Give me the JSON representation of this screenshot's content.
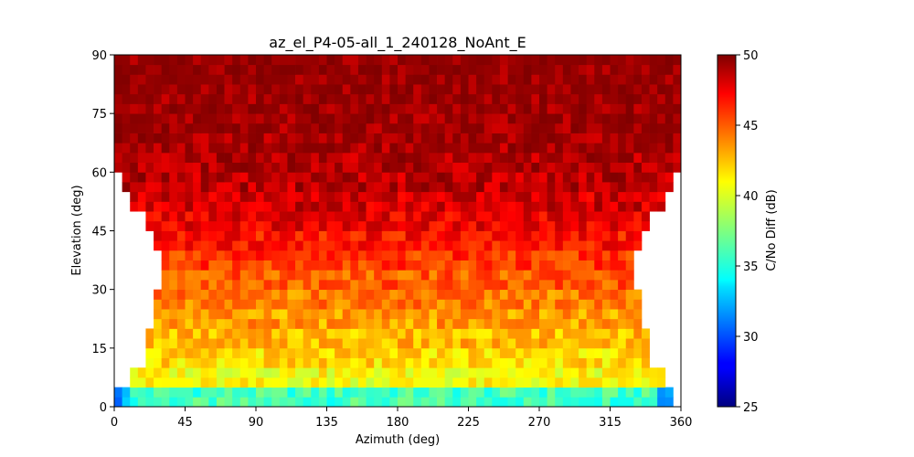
{
  "chart_data": {
    "type": "heatmap",
    "title": "az_el_P4-05-all_1_240128_NoAnt_E",
    "xlabel": "Azimuth (deg)",
    "ylabel": "Elevation (deg)",
    "xlim": [
      0,
      360
    ],
    "ylim": [
      0,
      90
    ],
    "x_ticks": [
      "0",
      "45",
      "90",
      "135",
      "180",
      "225",
      "270",
      "315",
      "360"
    ],
    "y_ticks": [
      "0",
      "15",
      "30",
      "45",
      "60",
      "75",
      "90"
    ],
    "bin_size_deg": [
      5,
      2.5
    ],
    "colorbar": {
      "label": "C/No Diff (dB)",
      "range": [
        25,
        50
      ],
      "ticks": [
        "25",
        "30",
        "35",
        "40",
        "45",
        "50"
      ],
      "colormap": "jet"
    },
    "elevation_bands_mean_db": [
      {
        "el": [
          0,
          5
        ],
        "value": 36
      },
      {
        "el": [
          5,
          10
        ],
        "value": 40.5
      },
      {
        "el": [
          10,
          15
        ],
        "value": 41.5
      },
      {
        "el": [
          15,
          20
        ],
        "value": 42.3
      },
      {
        "el": [
          20,
          25
        ],
        "value": 43
      },
      {
        "el": [
          25,
          30
        ],
        "value": 43.8
      },
      {
        "el": [
          30,
          35
        ],
        "value": 44.7
      },
      {
        "el": [
          35,
          40
        ],
        "value": 45.6
      },
      {
        "el": [
          40,
          45
        ],
        "value": 46.5
      },
      {
        "el": [
          45,
          50
        ],
        "value": 47.3
      },
      {
        "el": [
          50,
          55
        ],
        "value": 48
      },
      {
        "el": [
          55,
          60
        ],
        "value": 48.6
      },
      {
        "el": [
          60,
          65
        ],
        "value": 48.9
      },
      {
        "el": [
          65,
          70
        ],
        "value": 49.2
      },
      {
        "el": [
          70,
          75
        ],
        "value": 49.5
      },
      {
        "el": [
          75,
          80
        ],
        "value": 49.6
      },
      {
        "el": [
          80,
          85
        ],
        "value": 49.7
      },
      {
        "el": [
          85,
          90
        ],
        "value": 49.8
      }
    ],
    "coverage_az_by_elevation": [
      {
        "el": [
          0,
          5
        ],
        "az": [
          0,
          355
        ]
      },
      {
        "el": [
          5,
          10
        ],
        "az": [
          10,
          350
        ]
      },
      {
        "el": [
          10,
          15
        ],
        "az": [
          20,
          340
        ]
      },
      {
        "el": [
          15,
          20
        ],
        "az": [
          20,
          340
        ]
      },
      {
        "el": [
          20,
          25
        ],
        "az": [
          25,
          335
        ]
      },
      {
        "el": [
          25,
          30
        ],
        "az": [
          25,
          335
        ]
      },
      {
        "el": [
          30,
          35
        ],
        "az": [
          30,
          330
        ]
      },
      {
        "el": [
          35,
          40
        ],
        "az": [
          30,
          330
        ]
      },
      {
        "el": [
          40,
          45
        ],
        "az": [
          25,
          335
        ]
      },
      {
        "el": [
          45,
          50
        ],
        "az": [
          20,
          340
        ]
      },
      {
        "el": [
          50,
          55
        ],
        "az": [
          10,
          350
        ]
      },
      {
        "el": [
          55,
          60
        ],
        "az": [
          5,
          355
        ]
      },
      {
        "el": [
          60,
          65
        ],
        "az": [
          0,
          360
        ]
      },
      {
        "el": [
          65,
          90
        ],
        "az": [
          0,
          360
        ]
      }
    ],
    "grid": false,
    "legend": "colorbar-right"
  }
}
